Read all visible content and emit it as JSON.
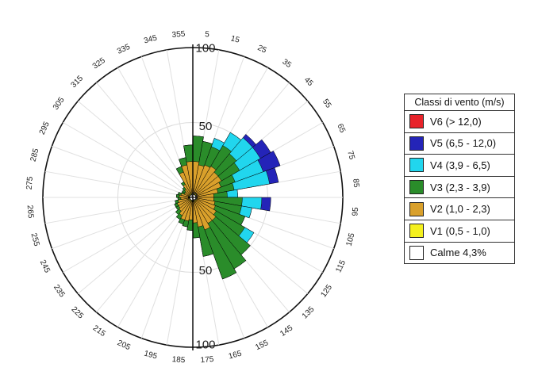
{
  "chart_data": {
    "type": "wind-rose",
    "direction_labels": [
      "5",
      "15",
      "25",
      "35",
      "45",
      "55",
      "65",
      "75",
      "85",
      "95",
      "105",
      "115",
      "125",
      "135",
      "145",
      "155",
      "165",
      "175",
      "185",
      "195",
      "205",
      "215",
      "225",
      "235",
      "245",
      "255",
      "265",
      "275",
      "285",
      "295",
      "305",
      "315",
      "325",
      "335",
      "345",
      "355"
    ],
    "radial_labels": [
      {
        "text": "100",
        "position": "top"
      },
      {
        "text": "50",
        "position": "top"
      },
      {
        "text": "0",
        "position": "center"
      },
      {
        "text": "50",
        "position": "bottom"
      },
      {
        "text": "100",
        "position": "bottom"
      }
    ],
    "rlim": [
      0,
      100
    ],
    "classes": [
      {
        "name": "V6 (> 12,0)",
        "color": "#e8232a"
      },
      {
        "name": "V5 (6,5 - 12,0)",
        "color": "#2424b8"
      },
      {
        "name": "V4 (3,9 - 6,5)",
        "color": "#21d6ee"
      },
      {
        "name": "V3 (2,3 - 3,9)",
        "color": "#2a8c2a"
      },
      {
        "name": "V2 (1,0 - 2,3)",
        "color": "#d9a02b"
      },
      {
        "name": "V1 (0,5 - 1,0)",
        "color": "#f4f01e"
      },
      {
        "name": "Calme 4,3%",
        "color": "#ffffff"
      }
    ],
    "cumulative_extent": [
      {
        "dir": 5,
        "V1": 3,
        "V2": 24,
        "V3": 41,
        "V4": 41,
        "V5": 41
      },
      {
        "dir": 15,
        "V1": 3,
        "V2": 22,
        "V3": 38,
        "V4": 38,
        "V5": 38
      },
      {
        "dir": 25,
        "V1": 3,
        "V2": 23,
        "V3": 36,
        "V4": 42,
        "V5": 42
      },
      {
        "dir": 35,
        "V1": 3,
        "V2": 24,
        "V3": 40,
        "V4": 50,
        "V5": 50
      },
      {
        "dir": 45,
        "V1": 3,
        "V2": 22,
        "V3": 38,
        "V4": 52,
        "V5": 55
      },
      {
        "dir": 55,
        "V1": 3,
        "V2": 22,
        "V3": 36,
        "V4": 52,
        "V5": 60
      },
      {
        "dir": 65,
        "V1": 3,
        "V2": 20,
        "V3": 30,
        "V4": 50,
        "V5": 62
      },
      {
        "dir": 75,
        "V1": 3,
        "V2": 17,
        "V3": 28,
        "V4": 52,
        "V5": 58
      },
      {
        "dir": 85,
        "V1": 3,
        "V2": 14,
        "V3": 23,
        "V4": 30,
        "V5": 30
      },
      {
        "dir": 95,
        "V1": 3,
        "V2": 14,
        "V3": 33,
        "V4": 46,
        "V5": 52
      },
      {
        "dir": 105,
        "V1": 3,
        "V2": 15,
        "V3": 33,
        "V4": 40,
        "V5": 40
      },
      {
        "dir": 115,
        "V1": 3,
        "V2": 16,
        "V3": 37,
        "V4": 37,
        "V5": 37
      },
      {
        "dir": 125,
        "V1": 3,
        "V2": 18,
        "V3": 40,
        "V4": 47,
        "V5": 47
      },
      {
        "dir": 135,
        "V1": 3,
        "V2": 20,
        "V3": 50,
        "V4": 50,
        "V5": 50
      },
      {
        "dir": 145,
        "V1": 3,
        "V2": 20,
        "V3": 55,
        "V4": 55,
        "V5": 55
      },
      {
        "dir": 155,
        "V1": 3,
        "V2": 23,
        "V3": 58,
        "V4": 58,
        "V5": 58
      },
      {
        "dir": 165,
        "V1": 3,
        "V2": 20,
        "V3": 40,
        "V4": 40,
        "V5": 40
      },
      {
        "dir": 175,
        "V1": 3,
        "V2": 17,
        "V3": 27,
        "V4": 27,
        "V5": 27
      },
      {
        "dir": 185,
        "V1": 3,
        "V2": 15,
        "V3": 22,
        "V4": 22,
        "V5": 22
      },
      {
        "dir": 195,
        "V1": 3,
        "V2": 16,
        "V3": 20,
        "V4": 20,
        "V5": 20
      },
      {
        "dir": 205,
        "V1": 3,
        "V2": 16,
        "V3": 19,
        "V4": 19,
        "V5": 19
      },
      {
        "dir": 215,
        "V1": 3,
        "V2": 14,
        "V3": 17,
        "V4": 17,
        "V5": 17
      },
      {
        "dir": 225,
        "V1": 3,
        "V2": 12,
        "V3": 15,
        "V4": 15,
        "V5": 15
      },
      {
        "dir": 235,
        "V1": 3,
        "V2": 11,
        "V3": 13,
        "V4": 13,
        "V5": 13
      },
      {
        "dir": 245,
        "V1": 3,
        "V2": 11,
        "V3": 13,
        "V4": 13,
        "V5": 13
      },
      {
        "dir": 255,
        "V1": 3,
        "V2": 10,
        "V3": 12,
        "V4": 12,
        "V5": 12
      },
      {
        "dir": 265,
        "V1": 3,
        "V2": 8,
        "V3": 10,
        "V4": 10,
        "V5": 10
      },
      {
        "dir": 275,
        "V1": 3,
        "V2": 9,
        "V3": 11,
        "V4": 11,
        "V5": 11
      },
      {
        "dir": 285,
        "V1": 3,
        "V2": 8,
        "V3": 10,
        "V4": 10,
        "V5": 10
      },
      {
        "dir": 295,
        "V1": 3,
        "V2": 6,
        "V3": 8,
        "V4": 8,
        "V5": 8
      },
      {
        "dir": 305,
        "V1": 3,
        "V2": 6,
        "V3": 8,
        "V4": 8,
        "V5": 8
      },
      {
        "dir": 315,
        "V1": 3,
        "V2": 7,
        "V3": 9,
        "V4": 9,
        "V5": 9
      },
      {
        "dir": 325,
        "V1": 3,
        "V2": 10,
        "V3": 12,
        "V4": 12,
        "V5": 12
      },
      {
        "dir": 335,
        "V1": 3,
        "V2": 18,
        "V3": 22,
        "V4": 22,
        "V5": 22
      },
      {
        "dir": 345,
        "V1": 3,
        "V2": 22,
        "V3": 27,
        "V4": 27,
        "V5": 27
      },
      {
        "dir": 355,
        "V1": 3,
        "V2": 24,
        "V3": 35,
        "V4": 35,
        "V5": 35
      }
    ],
    "legend_title": "Classi di vento (m/s)",
    "legend_position": "right"
  }
}
